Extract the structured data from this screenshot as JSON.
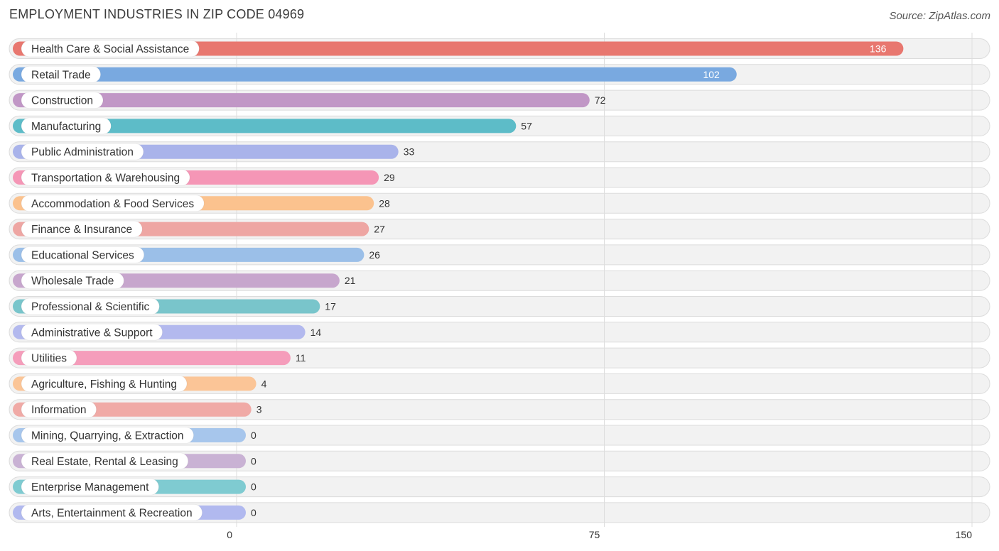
{
  "chart_data": {
    "type": "bar",
    "orientation": "horizontal",
    "title": "EMPLOYMENT INDUSTRIES IN ZIP CODE 04969",
    "source": "Source: ZipAtlas.com",
    "xlim": [
      0,
      150
    ],
    "ticks": [
      {
        "value": 0,
        "label": "0"
      },
      {
        "value": 75,
        "label": "75"
      },
      {
        "value": 150,
        "label": "150"
      }
    ],
    "categories": [
      "Health Care & Social Assistance",
      "Retail Trade",
      "Construction",
      "Manufacturing",
      "Public Administration",
      "Transportation & Warehousing",
      "Accommodation & Food Services",
      "Finance & Insurance",
      "Educational Services",
      "Wholesale Trade",
      "Professional & Scientific",
      "Administrative & Support",
      "Utilities",
      "Agriculture, Fishing & Hunting",
      "Information",
      "Mining, Quarrying, & Extraction",
      "Real Estate, Rental & Leasing",
      "Enterprise Management",
      "Arts, Entertainment & Recreation"
    ],
    "values": [
      136,
      102,
      72,
      57,
      33,
      29,
      28,
      27,
      26,
      21,
      17,
      14,
      11,
      4,
      3,
      0,
      0,
      0,
      0
    ],
    "value_labels": [
      "136",
      "102",
      "72",
      "57",
      "33",
      "29",
      "28",
      "27",
      "26",
      "21",
      "17",
      "14",
      "11",
      "4",
      "3",
      "0",
      "0",
      "0",
      "0"
    ],
    "colors": [
      "#e8776f",
      "#79a9e0",
      "#c197c6",
      "#5dbcc8",
      "#a9b3ea",
      "#f596b6",
      "#fbc28e",
      "#eea6a3",
      "#9bbfe8",
      "#c7a6cd",
      "#79c5cb",
      "#b3b9ee",
      "#f59dbb",
      "#fbc597",
      "#f0aaa6",
      "#a7c6ec",
      "#c9b2d4",
      "#7fcbd1",
      "#b1b9ef"
    ]
  }
}
